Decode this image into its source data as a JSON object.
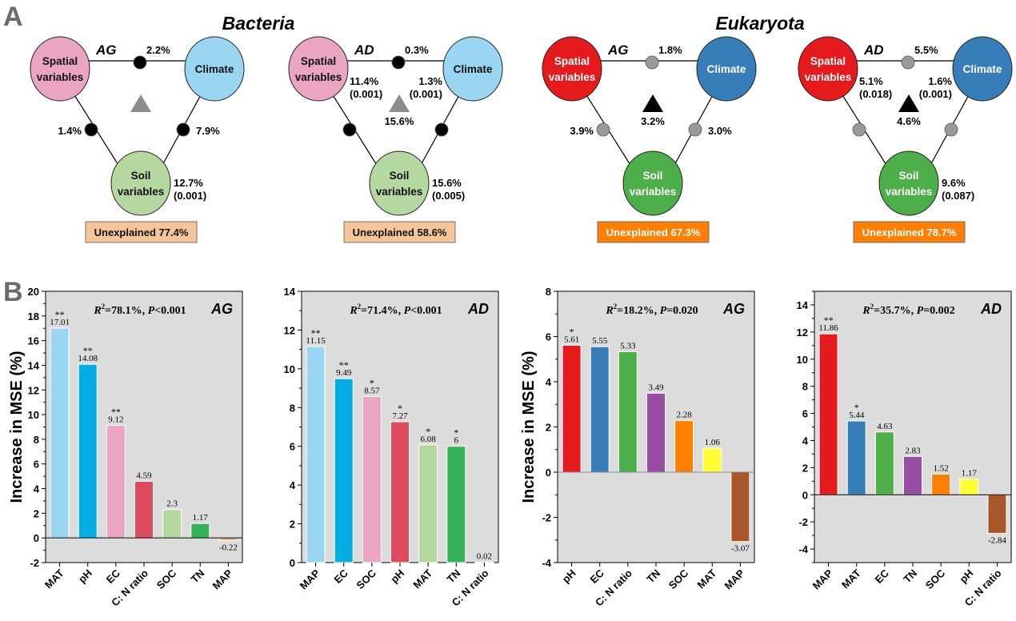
{
  "panel_a": {
    "label": "A",
    "groups": [
      {
        "title": "Bacteria"
      },
      {
        "title": "Eukaryota"
      }
    ],
    "node_labels": {
      "spatial": [
        "Spatial",
        "variables"
      ],
      "climate": [
        "Climate"
      ],
      "soil": [
        "Soil",
        "variables"
      ]
    },
    "diagrams": [
      {
        "tag": "AG",
        "palette": "bacteria",
        "top_pct": "2.2%",
        "left_pct": "1.4%",
        "right_pct": "7.9%",
        "spatial_pct": [],
        "climate_pct": [],
        "soil_pct": [
          "12.7%",
          "(0.001)"
        ],
        "center_pct": "",
        "unexplained": "Unexplained 77.4%"
      },
      {
        "tag": "AD",
        "palette": "bacteria",
        "top_pct": "0.3%",
        "left_pct": "",
        "right_pct": "",
        "spatial_pct": [
          "11.4%",
          "(0.001)"
        ],
        "climate_pct": [
          "1.3%",
          "(0.001)"
        ],
        "soil_pct": [
          "15.6%",
          "(0.005)"
        ],
        "center_pct": "15.6%",
        "unexplained": "Unexplained 58.6%"
      },
      {
        "tag": "AG",
        "palette": "eukaryota",
        "top_pct": "1.8%",
        "left_pct": "3.9%",
        "right_pct": "3.0%",
        "spatial_pct": [],
        "climate_pct": [],
        "soil_pct": [],
        "center_pct": "3.2%",
        "unexplained": "Unexplained 67.3%"
      },
      {
        "tag": "AD",
        "palette": "eukaryota",
        "top_pct": "5.5%",
        "left_pct": "",
        "right_pct": "",
        "spatial_pct": [
          "5.1%",
          "(0.018)"
        ],
        "climate_pct": [
          "1.6%",
          "(0.001)"
        ],
        "soil_pct": [
          "9.6%",
          "(0.087)"
        ],
        "center_pct": "4.6%",
        "unexplained": "Unexplained 78.7%"
      }
    ],
    "palettes": {
      "bacteria": {
        "spatial": "#eaa5c2",
        "climate": "#9ad6f2",
        "soil": "#b5d8a0",
        "node_text": "#111111",
        "dot": "#000000",
        "triangle": "#8c8c8c",
        "box": "#f5c59a",
        "box_text": "#111111"
      },
      "eukaryota": {
        "spatial": "#e41a1c",
        "climate": "#377eb8",
        "soil": "#4daf4a",
        "node_text": "#ffffff",
        "dot": "#999999",
        "triangle": "#000000",
        "box": "#ff8000",
        "box_text": "#ffffff"
      }
    }
  },
  "panel_b": {
    "label": "B"
  },
  "chart_data": [
    {
      "type": "bar",
      "group": "Bacteria",
      "tag": "AG",
      "stat": {
        "r2": "=78.1%, ",
        "p": "<0.001"
      },
      "ylabel": "Increase in MSE (%)",
      "ylim": [
        -2,
        20
      ],
      "yticks": [
        -2,
        0,
        2,
        4,
        6,
        8,
        10,
        12,
        14,
        16,
        18,
        20
      ],
      "categories": [
        "MAT",
        "pH",
        "EC",
        "C: N ratio",
        "SOC",
        "TN",
        "MAP"
      ],
      "values": [
        17.01,
        14.08,
        9.12,
        4.59,
        2.3,
        1.17,
        -0.22
      ],
      "labels": [
        "17.01",
        "14.08",
        "9.12",
        "4.59",
        "2.3",
        "1.17",
        "-0.22"
      ],
      "significance": [
        "**",
        "**",
        "**",
        "",
        "",
        "",
        ""
      ],
      "colors": [
        "#9ad6f2",
        "#00aee4",
        "#eaa5c2",
        "#dc4a5c",
        "#b5d8a0",
        "#33b257",
        "#f5b080"
      ]
    },
    {
      "type": "bar",
      "group": "Bacteria",
      "tag": "AD",
      "stat": {
        "r2": "=71.4%, ",
        "p": "<0.001"
      },
      "ylabel": "",
      "ylim": [
        0,
        14
      ],
      "yticks": [
        0,
        2,
        4,
        6,
        8,
        10,
        12,
        14
      ],
      "categories": [
        "MAP",
        "EC",
        "SOC",
        "pH",
        "MAT",
        "TN",
        "C: N ratio"
      ],
      "values": [
        11.15,
        9.49,
        8.57,
        7.27,
        6.08,
        6,
        0.02
      ],
      "labels": [
        "11.15",
        "9.49",
        "8.57",
        "7.27",
        "6.08",
        "6",
        "0.02"
      ],
      "significance": [
        "**",
        "**",
        "*",
        "*",
        "*",
        "*",
        ""
      ],
      "colors": [
        "#9ad6f2",
        "#00aee4",
        "#eaa5c2",
        "#dc4a5c",
        "#b5d8a0",
        "#33b257",
        "#f5b080"
      ]
    },
    {
      "type": "bar",
      "group": "Eukaryota",
      "tag": "AG",
      "stat": {
        "r2": "=18.2%, ",
        "p": "=0.020"
      },
      "ylabel": "Increase in MSE (%)",
      "ylim": [
        -4,
        8
      ],
      "yticks": [
        -4,
        -2,
        0,
        2,
        4,
        6,
        8
      ],
      "categories": [
        "pH",
        "EC",
        "C: N ratio",
        "TN",
        "SOC",
        "MAT",
        "MAP"
      ],
      "values": [
        5.61,
        5.55,
        5.33,
        3.49,
        2.28,
        1.06,
        -3.07
      ],
      "labels": [
        "5.61",
        "5.55",
        "5.33",
        "3.49",
        "2.28",
        "1.06",
        "-3.07"
      ],
      "significance": [
        "*",
        "",
        "",
        "",
        "",
        "",
        ""
      ],
      "colors": [
        "#e41a1c",
        "#377eb8",
        "#4daf4a",
        "#984ea3",
        "#ff7f00",
        "#ffff33",
        "#a65628"
      ]
    },
    {
      "type": "bar",
      "group": "Eukaryota",
      "tag": "AD",
      "stat": {
        "r2": "=35.7%, ",
        "p": "=0.002"
      },
      "ylabel": "",
      "ylim": [
        -5,
        15
      ],
      "yticks": [
        -4,
        -2,
        0,
        2,
        4,
        6,
        8,
        10,
        12,
        14
      ],
      "categories": [
        "MAP",
        "MAT",
        "EC",
        "TN",
        "SOC",
        "pH",
        "C: N ratio"
      ],
      "values": [
        11.86,
        5.44,
        4.63,
        2.83,
        1.52,
        1.17,
        -2.84
      ],
      "labels": [
        "11.86",
        "5.44",
        "4.63",
        "2.83",
        "1.52",
        "1.17",
        "-2.84"
      ],
      "significance": [
        "**",
        "*",
        "",
        "",
        "",
        "",
        ""
      ],
      "colors": [
        "#e41a1c",
        "#377eb8",
        "#4daf4a",
        "#984ea3",
        "#ff7f00",
        "#ffff33",
        "#a65628"
      ]
    }
  ]
}
